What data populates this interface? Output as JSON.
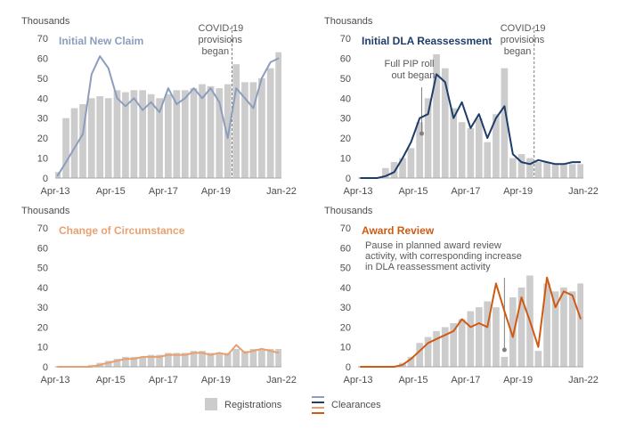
{
  "colors": {
    "registrations": "#cccccc",
    "clear_blue": "#8c9dbd",
    "clear_navy": "#1f3d6a",
    "clear_peach": "#e8a070",
    "clear_orange": "#cf5a14",
    "axis": "#a6a6a6",
    "annotation": "#808080"
  },
  "legend": {
    "registrations": "Registrations",
    "clearances": "Clearances"
  },
  "chart_data": [
    {
      "type": "bar",
      "title": "Initial New Claim",
      "unit_label": "Thousands",
      "ylim": [
        0,
        70
      ],
      "yticks": [
        0,
        10,
        20,
        30,
        40,
        50,
        60,
        70
      ],
      "xticks": [
        "Apr-13",
        "Apr-15",
        "Apr-17",
        "Apr-19",
        "Jan-22"
      ],
      "annotations": [
        {
          "text": [
            "COVID-19",
            "provisions",
            "began"
          ],
          "at": "Mar-20"
        }
      ],
      "series": [
        {
          "name": "Registrations",
          "kind": "bar",
          "x": [
            2013.33,
            2013.67,
            2014.0,
            2014.33,
            2014.67,
            2015.0,
            2015.33,
            2015.67,
            2016.0,
            2016.33,
            2016.67,
            2017.0,
            2017.33,
            2017.67,
            2018.0,
            2018.33,
            2018.67,
            2019.0,
            2019.33,
            2019.67,
            2020.0,
            2020.33,
            2020.67,
            2021.0,
            2021.33,
            2021.67,
            2022.0
          ],
          "values": [
            3,
            30,
            35,
            37,
            40,
            41,
            40,
            44,
            43,
            44,
            44,
            42,
            40,
            42,
            44,
            44,
            45,
            47,
            46,
            45,
            47,
            57,
            48,
            48,
            50,
            55,
            63
          ]
        },
        {
          "name": "Clearances",
          "kind": "line",
          "x": [
            2013.33,
            2013.67,
            2014.0,
            2014.33,
            2014.67,
            2015.0,
            2015.33,
            2015.67,
            2016.0,
            2016.33,
            2016.67,
            2017.0,
            2017.33,
            2017.67,
            2018.0,
            2018.33,
            2018.67,
            2019.0,
            2019.33,
            2019.67,
            2020.0,
            2020.33,
            2020.67,
            2021.0,
            2021.33,
            2021.67,
            2022.0
          ],
          "values": [
            1,
            8,
            15,
            22,
            52,
            61,
            55,
            40,
            36,
            40,
            34,
            38,
            33,
            45,
            37,
            40,
            45,
            40,
            45,
            38,
            20,
            45,
            40,
            35,
            50,
            58,
            60
          ]
        }
      ]
    },
    {
      "type": "bar",
      "title": "Initial DLA Reassessment",
      "unit_label": "Thousands",
      "ylim": [
        0,
        70
      ],
      "yticks": [
        0,
        10,
        20,
        30,
        40,
        50,
        60,
        70
      ],
      "xticks": [
        "Apr-13",
        "Apr-15",
        "Apr-17",
        "Apr-19",
        "Jan-22"
      ],
      "annotations": [
        {
          "text": [
            "Full PIP roll",
            "out began"
          ],
          "at": "Oct-15"
        },
        {
          "text": [
            "COVID-19",
            "provisions",
            "began"
          ],
          "at": "Mar-20"
        }
      ],
      "series": [
        {
          "name": "Registrations",
          "kind": "bar",
          "x": [
            2013.33,
            2013.67,
            2014.0,
            2014.33,
            2014.67,
            2015.0,
            2015.33,
            2015.67,
            2016.0,
            2016.33,
            2016.67,
            2017.0,
            2017.33,
            2017.67,
            2018.0,
            2018.33,
            2018.67,
            2019.0,
            2019.33,
            2019.67,
            2020.0,
            2020.33,
            2020.67,
            2021.0,
            2021.33,
            2021.67,
            2022.0
          ],
          "values": [
            0,
            0,
            0,
            5,
            8,
            10,
            15,
            28,
            40,
            62,
            55,
            35,
            28,
            25,
            30,
            18,
            32,
            55,
            10,
            12,
            10,
            8,
            8,
            7,
            7,
            7,
            7
          ]
        },
        {
          "name": "Clearances",
          "kind": "line",
          "x": [
            2013.33,
            2013.67,
            2014.0,
            2014.33,
            2014.67,
            2015.0,
            2015.33,
            2015.67,
            2016.0,
            2016.33,
            2016.67,
            2017.0,
            2017.33,
            2017.67,
            2018.0,
            2018.33,
            2018.67,
            2019.0,
            2019.33,
            2019.67,
            2020.0,
            2020.33,
            2020.67,
            2021.0,
            2021.33,
            2021.67,
            2022.0
          ],
          "values": [
            0,
            0,
            0,
            1,
            3,
            10,
            18,
            30,
            32,
            52,
            48,
            30,
            38,
            25,
            32,
            20,
            30,
            36,
            12,
            8,
            7,
            9,
            8,
            7,
            7,
            8,
            8
          ]
        }
      ]
    },
    {
      "type": "bar",
      "title": "Change of Circumstance",
      "unit_label": "Thousands",
      "ylim": [
        0,
        70
      ],
      "yticks": [
        0,
        10,
        20,
        30,
        40,
        50,
        60,
        70
      ],
      "xticks": [
        "Apr-13",
        "Apr-15",
        "Apr-17",
        "Apr-19",
        "Jan-22"
      ],
      "annotations": [],
      "series": [
        {
          "name": "Registrations",
          "kind": "bar",
          "x": [
            2013.33,
            2013.67,
            2014.0,
            2014.33,
            2014.67,
            2015.0,
            2015.33,
            2015.67,
            2016.0,
            2016.33,
            2016.67,
            2017.0,
            2017.33,
            2017.67,
            2018.0,
            2018.33,
            2018.67,
            2019.0,
            2019.33,
            2019.67,
            2020.0,
            2020.33,
            2020.67,
            2021.0,
            2021.33,
            2021.67,
            2022.0
          ],
          "values": [
            0,
            0,
            0,
            0,
            1,
            2,
            3,
            4,
            5,
            5,
            5,
            6,
            6,
            7,
            7,
            7,
            8,
            8,
            7,
            7,
            7,
            9,
            8,
            9,
            9,
            9,
            9
          ]
        },
        {
          "name": "Clearances",
          "kind": "line",
          "x": [
            2013.33,
            2013.67,
            2014.0,
            2014.33,
            2014.67,
            2015.0,
            2015.33,
            2015.67,
            2016.0,
            2016.33,
            2016.67,
            2017.0,
            2017.33,
            2017.67,
            2018.0,
            2018.33,
            2018.67,
            2019.0,
            2019.33,
            2019.67,
            2020.0,
            2020.33,
            2020.67,
            2021.0,
            2021.33,
            2021.67,
            2022.0
          ],
          "values": [
            0,
            0,
            0,
            0,
            0,
            1,
            2,
            3,
            4,
            4,
            5,
            5,
            5,
            6,
            6,
            6,
            7,
            7,
            6,
            7,
            6,
            11,
            7,
            8,
            9,
            8,
            7
          ]
        }
      ]
    },
    {
      "type": "bar",
      "title": "Award Review",
      "unit_label": "Thousands",
      "ylim": [
        0,
        70
      ],
      "yticks": [
        0,
        10,
        20,
        30,
        40,
        50,
        60,
        70
      ],
      "xticks": [
        "Apr-13",
        "Apr-15",
        "Apr-17",
        "Apr-19",
        "Jan-22"
      ],
      "annotations": [
        {
          "text": [
            "Pause in planned award review",
            "activity, with corresponding increase",
            "in DLA reassessment activity"
          ],
          "at": "Jan-19"
        }
      ],
      "series": [
        {
          "name": "Registrations",
          "kind": "bar",
          "x": [
            2013.33,
            2013.67,
            2014.0,
            2014.33,
            2014.67,
            2015.0,
            2015.33,
            2015.67,
            2016.0,
            2016.33,
            2016.67,
            2017.0,
            2017.33,
            2017.67,
            2018.0,
            2018.33,
            2018.67,
            2019.0,
            2019.33,
            2019.67,
            2020.0,
            2020.33,
            2020.67,
            2021.0,
            2021.33,
            2021.67,
            2022.0
          ],
          "values": [
            0,
            0,
            0,
            0,
            0,
            2,
            5,
            12,
            15,
            18,
            20,
            22,
            24,
            28,
            30,
            33,
            30,
            5,
            35,
            40,
            46,
            8,
            42,
            38,
            40,
            38,
            42
          ]
        },
        {
          "name": "Clearances",
          "kind": "line",
          "x": [
            2013.33,
            2013.67,
            2014.0,
            2014.33,
            2014.67,
            2015.0,
            2015.33,
            2015.67,
            2016.0,
            2016.33,
            2016.67,
            2017.0,
            2017.33,
            2017.67,
            2018.0,
            2018.33,
            2018.67,
            2019.0,
            2019.33,
            2019.67,
            2020.0,
            2020.33,
            2020.67,
            2021.0,
            2021.33,
            2021.67,
            2022.0
          ],
          "values": [
            0,
            0,
            0,
            0,
            0,
            1,
            4,
            8,
            12,
            14,
            16,
            18,
            24,
            20,
            22,
            20,
            42,
            28,
            15,
            35,
            23,
            10,
            45,
            30,
            38,
            36,
            24
          ]
        }
      ]
    }
  ]
}
